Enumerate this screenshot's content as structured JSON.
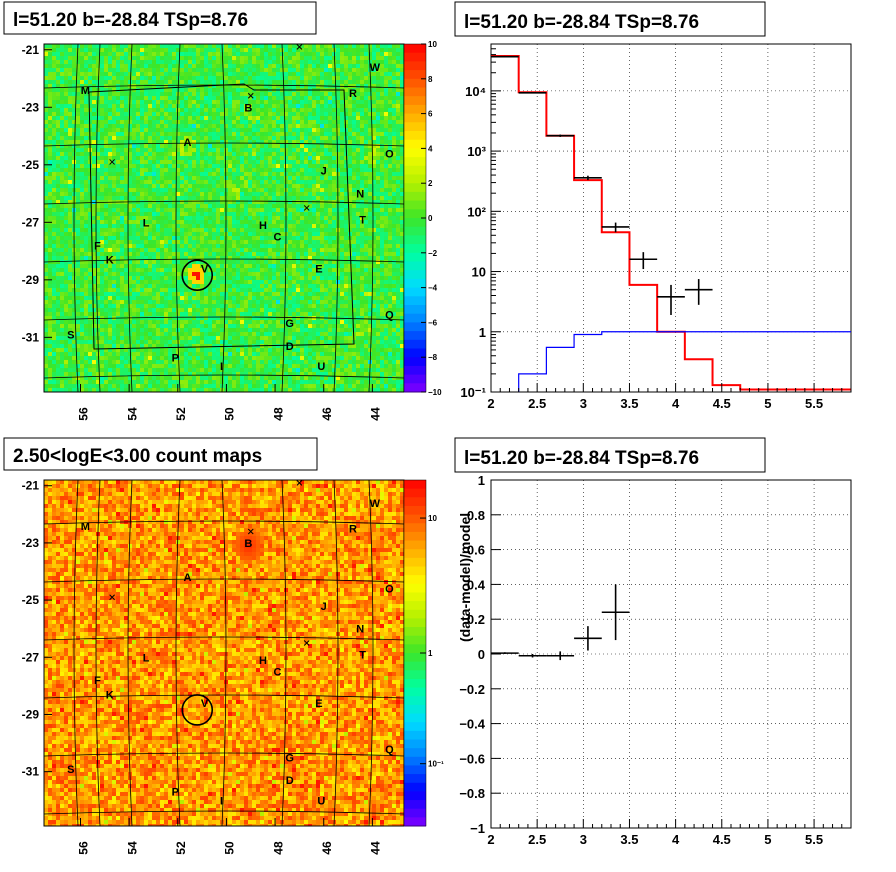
{
  "chart_data": [
    {
      "type": "heatmap",
      "title": "l=51.20 b=-28.84 TSp=8.76",
      "xlabel": "",
      "ylabel": "",
      "xlim": [
        57.5,
        42.7
      ],
      "ylim": [
        -32.9,
        -20.8
      ],
      "x_ticks": [
        "56",
        "54",
        "52",
        "50",
        "48",
        "46",
        "44"
      ],
      "y_ticks": [
        "-21",
        "-23",
        "-25",
        "-27",
        "-29",
        "-31"
      ],
      "colorbar": {
        "scale": "linear",
        "range": [
          -10,
          10
        ],
        "ticks": [
          "10",
          "8",
          "6",
          "4",
          "2",
          "0",
          "−2",
          "−4",
          "−6",
          "−8",
          "−10"
        ]
      },
      "sources": [
        {
          "label": "M",
          "l": 55.8,
          "b": -22.4
        },
        {
          "label": "W",
          "l": 43.9,
          "b": -21.6
        },
        {
          "label": "R",
          "l": 44.8,
          "b": -22.5
        },
        {
          "label": "B",
          "l": 49.1,
          "b": -23.0
        },
        {
          "label": "A",
          "l": 51.6,
          "b": -24.2
        },
        {
          "label": "O",
          "l": 43.3,
          "b": -24.6
        },
        {
          "label": "J",
          "l": 46.0,
          "b": -25.2
        },
        {
          "label": "N",
          "l": 44.5,
          "b": -26.0
        },
        {
          "label": "L",
          "l": 53.3,
          "b": -27.0
        },
        {
          "label": "H",
          "l": 48.5,
          "b": -27.1
        },
        {
          "label": "T",
          "l": 44.4,
          "b": -26.9
        },
        {
          "label": "C",
          "l": 47.9,
          "b": -27.5
        },
        {
          "label": "F",
          "l": 55.3,
          "b": -27.8
        },
        {
          "label": "K",
          "l": 54.8,
          "b": -28.3
        },
        {
          "label": "V",
          "l": 50.9,
          "b": -28.6
        },
        {
          "label": "E",
          "l": 46.2,
          "b": -28.6
        },
        {
          "label": "Q",
          "l": 43.3,
          "b": -30.2
        },
        {
          "label": "S",
          "l": 56.4,
          "b": -30.9
        },
        {
          "label": "G",
          "l": 47.4,
          "b": -30.5
        },
        {
          "label": "D",
          "l": 47.4,
          "b": -31.3
        },
        {
          "label": "P",
          "l": 52.1,
          "b": -31.7
        },
        {
          "label": "I",
          "l": 50.2,
          "b": -32.0
        },
        {
          "label": "U",
          "l": 46.1,
          "b": -32.0
        }
      ],
      "circle": {
        "l": 51.2,
        "b": -28.84
      }
    },
    {
      "type": "line",
      "title": "l=51.20 b=-28.84 TSp=8.76",
      "yscale": "log",
      "xlim": [
        2,
        5.9
      ],
      "ylim": [
        0.1,
        60000
      ],
      "x_ticks": [
        "2",
        "2.5",
        "3",
        "3.5",
        "4",
        "4.5",
        "5",
        "5.5"
      ],
      "y_ticks": [
        "10⁻¹",
        "1",
        "10",
        "10²",
        "10³",
        "10⁴"
      ],
      "grid": true,
      "series": [
        {
          "color": "#ff0000",
          "type": "step",
          "edges": [
            2.0,
            2.3,
            2.6,
            2.9,
            3.2,
            3.5,
            3.8,
            4.1,
            4.4,
            4.7,
            5.0,
            5.3,
            5.6,
            5.9
          ],
          "values": [
            38000,
            9500,
            1800,
            330,
            45,
            6,
            1,
            0.35,
            0.13,
            0.11,
            0.11,
            0.11,
            0.11
          ]
        },
        {
          "color": "#0000ff",
          "type": "step",
          "edges": [
            2.0,
            2.3,
            2.6,
            2.9,
            3.2,
            3.5,
            3.8,
            4.1,
            4.4,
            4.7,
            5.0,
            5.3,
            5.6,
            5.9
          ],
          "values": [
            0.05,
            0.2,
            0.55,
            0.9,
            1.0,
            1.0,
            1.0,
            1.0,
            1.0,
            1.0,
            1.0,
            1.0,
            1.0
          ]
        },
        {
          "color": "#000000",
          "type": "errorbar",
          "points": [
            {
              "x": 2.15,
              "y": 37000,
              "xerr": 0.15,
              "ylo": 36000,
              "yhi": 38000
            },
            {
              "x": 2.45,
              "y": 9300,
              "xerr": 0.15,
              "ylo": 9100,
              "yhi": 9500
            },
            {
              "x": 2.75,
              "y": 1800,
              "xerr": 0.15,
              "ylo": 1720,
              "yhi": 1880
            },
            {
              "x": 3.05,
              "y": 360,
              "xerr": 0.15,
              "ylo": 330,
              "yhi": 390
            },
            {
              "x": 3.35,
              "y": 55,
              "xerr": 0.15,
              "ylo": 45,
              "yhi": 65
            },
            {
              "x": 3.65,
              "y": 16,
              "xerr": 0.15,
              "ylo": 11,
              "yhi": 21
            },
            {
              "x": 3.95,
              "y": 3.8,
              "xerr": 0.15,
              "ylo": 1.9,
              "yhi": 6
            },
            {
              "x": 4.25,
              "y": 5,
              "xerr": 0.15,
              "ylo": 2.8,
              "yhi": 7.5
            }
          ]
        }
      ]
    },
    {
      "type": "heatmap",
      "title": "2.50<logE<3.00 count maps",
      "xlabel": "",
      "ylabel": "",
      "xlim": [
        57.5,
        42.7
      ],
      "ylim": [
        -32.9,
        -20.8
      ],
      "x_ticks": [
        "56",
        "54",
        "52",
        "50",
        "48",
        "46",
        "44"
      ],
      "y_ticks": [
        "-21",
        "-23",
        "-25",
        "-27",
        "-29",
        "-31"
      ],
      "colorbar": {
        "scale": "log",
        "ticks": [
          "10",
          "1",
          "10⁻¹"
        ]
      },
      "sources": [
        {
          "label": "M",
          "l": 55.8,
          "b": -22.4
        },
        {
          "label": "W",
          "l": 43.9,
          "b": -21.6
        },
        {
          "label": "R",
          "l": 44.8,
          "b": -22.5
        },
        {
          "label": "B",
          "l": 49.1,
          "b": -23.0
        },
        {
          "label": "A",
          "l": 51.6,
          "b": -24.2
        },
        {
          "label": "O",
          "l": 43.3,
          "b": -24.6
        },
        {
          "label": "J",
          "l": 46.0,
          "b": -25.2
        },
        {
          "label": "N",
          "l": 44.5,
          "b": -26.0
        },
        {
          "label": "L",
          "l": 53.3,
          "b": -27.0
        },
        {
          "label": "H",
          "l": 48.5,
          "b": -27.1
        },
        {
          "label": "T",
          "l": 44.4,
          "b": -26.9
        },
        {
          "label": "C",
          "l": 47.9,
          "b": -27.5
        },
        {
          "label": "F",
          "l": 55.3,
          "b": -27.8
        },
        {
          "label": "K",
          "l": 54.8,
          "b": -28.3
        },
        {
          "label": "V",
          "l": 50.9,
          "b": -28.6
        },
        {
          "label": "E",
          "l": 46.2,
          "b": -28.6
        },
        {
          "label": "Q",
          "l": 43.3,
          "b": -30.2
        },
        {
          "label": "S",
          "l": 56.4,
          "b": -30.9
        },
        {
          "label": "G",
          "l": 47.4,
          "b": -30.5
        },
        {
          "label": "D",
          "l": 47.4,
          "b": -31.3
        },
        {
          "label": "P",
          "l": 52.1,
          "b": -31.7
        },
        {
          "label": "I",
          "l": 50.2,
          "b": -32.0
        },
        {
          "label": "U",
          "l": 46.1,
          "b": -32.0
        }
      ],
      "circle": {
        "l": 51.2,
        "b": -28.84
      }
    },
    {
      "type": "scatter",
      "title": "l=51.20 b=-28.84 TSp=8.76",
      "ylabel": "(data-model)/model",
      "xlim": [
        2,
        5.9
      ],
      "ylim": [
        -1,
        1
      ],
      "x_ticks": [
        "2",
        "2.5",
        "3",
        "3.5",
        "4",
        "4.5",
        "5",
        "5.5"
      ],
      "y_ticks": [
        "1",
        "0.8",
        "0.6",
        "0.4",
        "0.2",
        "0",
        "−0.2",
        "−0.4",
        "−0.6",
        "−0.8",
        "−1"
      ],
      "grid": true,
      "points": [
        {
          "x": 2.15,
          "y": 0.005,
          "xerr": 0.15,
          "yerr": 0.005
        },
        {
          "x": 2.45,
          "y": -0.01,
          "xerr": 0.15,
          "yerr": 0.01
        },
        {
          "x": 2.75,
          "y": -0.01,
          "xerr": 0.15,
          "yerr": 0.025
        },
        {
          "x": 3.05,
          "y": 0.09,
          "xerr": 0.15,
          "yerr": 0.07
        },
        {
          "x": 3.35,
          "y": 0.24,
          "xerr": 0.15,
          "yerr": 0.16
        }
      ]
    }
  ]
}
